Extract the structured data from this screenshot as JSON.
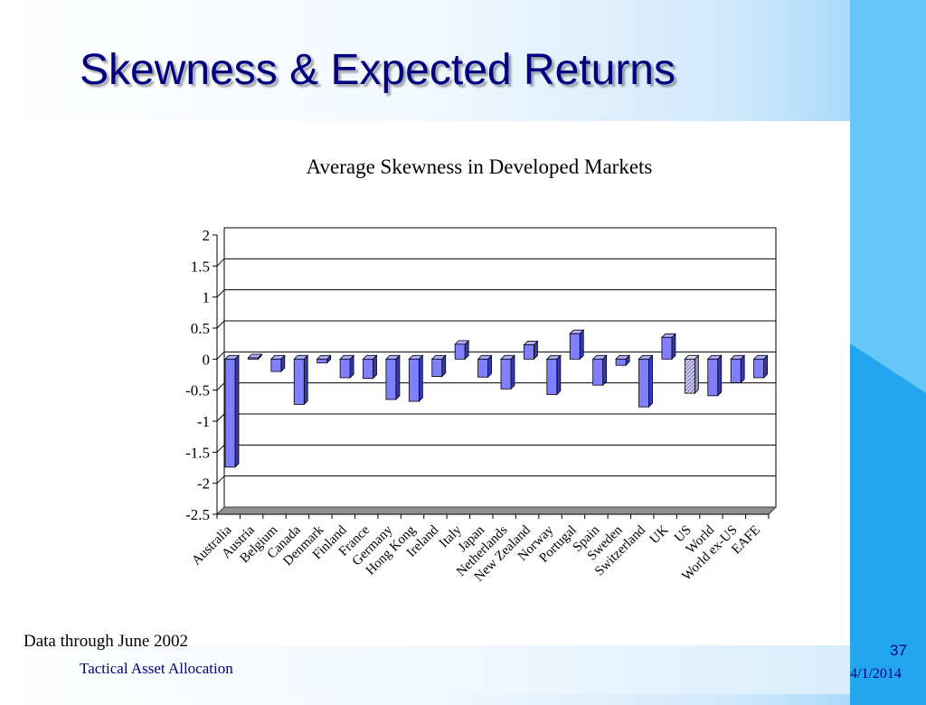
{
  "slide": {
    "title": "Skewness & Expected Returns",
    "note": "Data through June 2002",
    "footer_left": "Tactical Asset Allocation",
    "slide_number": "37",
    "date": "4/1/2014"
  },
  "colors": {
    "title": "#000080",
    "bar_fill": "#8080ff",
    "bar_side": "#3838b0",
    "bar_top": "#b0b0ff",
    "highlight_bar_fill": "#c8c8ee"
  },
  "chart_data": {
    "type": "bar",
    "title": "Average Skewness in Developed Markets",
    "categories": [
      "Australia",
      "Austria",
      "Belgium",
      "Canada",
      "Denmark",
      "Finland",
      "France",
      "Germany",
      "Hong Kong",
      "Ireland",
      "Italy",
      "Japan",
      "Netherlands",
      "New Zealand",
      "Norway",
      "Portugal",
      "Spain",
      "Sweden",
      "Switzerland",
      "UK",
      "US",
      "World",
      "World ex-US",
      "EAFE"
    ],
    "values": [
      -1.74,
      0.02,
      -0.2,
      -0.73,
      -0.06,
      -0.3,
      -0.31,
      -0.65,
      -0.68,
      -0.28,
      0.24,
      -0.29,
      -0.48,
      0.23,
      -0.57,
      0.41,
      -0.42,
      -0.1,
      -0.77,
      0.35,
      -0.55,
      -0.59,
      -0.38,
      -0.3
    ],
    "highlight_category": "US",
    "ylim": [
      -2.5,
      2
    ],
    "yticks": [
      "2",
      "1.5",
      "1",
      "0.5",
      "0",
      "-0.5",
      "-1",
      "-1.5",
      "-2",
      "-2.5"
    ],
    "ytick_values": [
      2,
      1.5,
      1,
      0.5,
      0,
      -0.5,
      -1,
      -1.5,
      -2,
      -2.5
    ],
    "grid": true,
    "legend": "none"
  }
}
